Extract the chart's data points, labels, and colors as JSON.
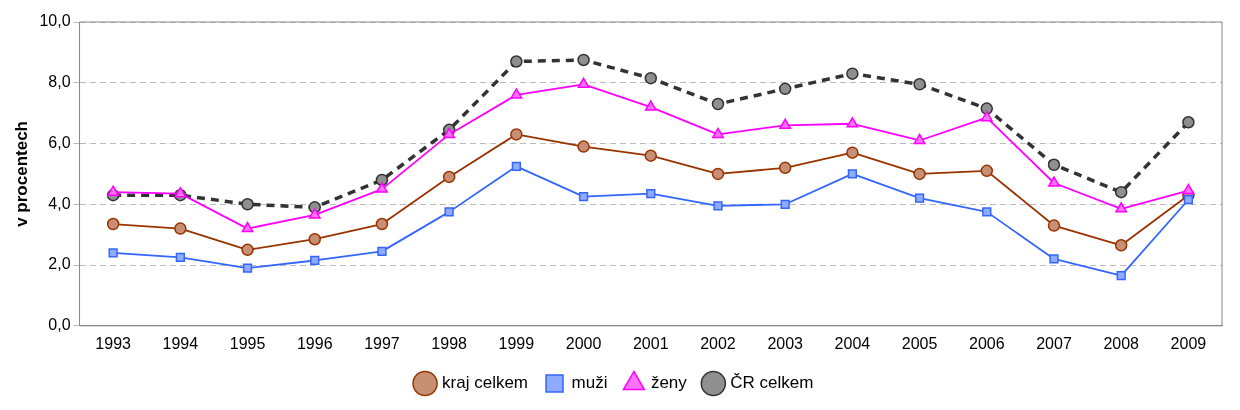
{
  "chart_data": {
    "type": "line",
    "ylabel": "v procentech",
    "categories": [
      "1993",
      "1994",
      "1995",
      "1996",
      "1997",
      "1998",
      "1999",
      "2000",
      "2001",
      "2002",
      "2003",
      "2004",
      "2005",
      "2006",
      "2007",
      "2008",
      "2009"
    ],
    "series": [
      {
        "name": "kraj celkem",
        "color": "#993300",
        "marker": "circle",
        "line_style": "solid",
        "values": [
          3.35,
          3.2,
          2.5,
          2.85,
          3.35,
          4.9,
          6.3,
          5.9,
          5.6,
          5.0,
          5.2,
          5.7,
          5.0,
          5.1,
          3.3,
          2.65,
          4.3
        ]
      },
      {
        "name": "muži",
        "color": "#3366ff",
        "marker": "square",
        "line_style": "solid",
        "values": [
          2.4,
          2.25,
          1.9,
          2.15,
          2.45,
          3.75,
          5.25,
          4.25,
          4.35,
          3.95,
          4.0,
          5.0,
          4.2,
          3.75,
          2.2,
          1.65,
          4.15
        ]
      },
      {
        "name": "ženy",
        "color": "#ff00ff",
        "marker": "triangle",
        "line_style": "solid",
        "values": [
          4.4,
          4.35,
          3.2,
          3.65,
          4.5,
          6.3,
          7.6,
          7.95,
          7.2,
          6.3,
          6.6,
          6.65,
          6.1,
          6.85,
          4.7,
          3.85,
          4.45
        ]
      },
      {
        "name": "ČR celkem",
        "color": "#333333",
        "marker": "circle",
        "line_style": "dashed",
        "values": [
          4.3,
          4.3,
          4.0,
          3.9,
          4.8,
          6.45,
          8.7,
          8.75,
          8.15,
          7.3,
          7.8,
          8.3,
          7.95,
          7.15,
          5.3,
          4.4,
          6.7
        ]
      }
    ],
    "ylim": [
      0,
      10
    ],
    "yticks": [
      {
        "value": 0,
        "label": "0,0"
      },
      {
        "value": 2,
        "label": "2,0"
      },
      {
        "value": 4,
        "label": "4,0"
      },
      {
        "value": 6,
        "label": "6,0"
      },
      {
        "value": 8,
        "label": "8,0"
      },
      {
        "value": 10,
        "label": "10,0"
      }
    ],
    "grid": "y",
    "legend": "bottom"
  }
}
